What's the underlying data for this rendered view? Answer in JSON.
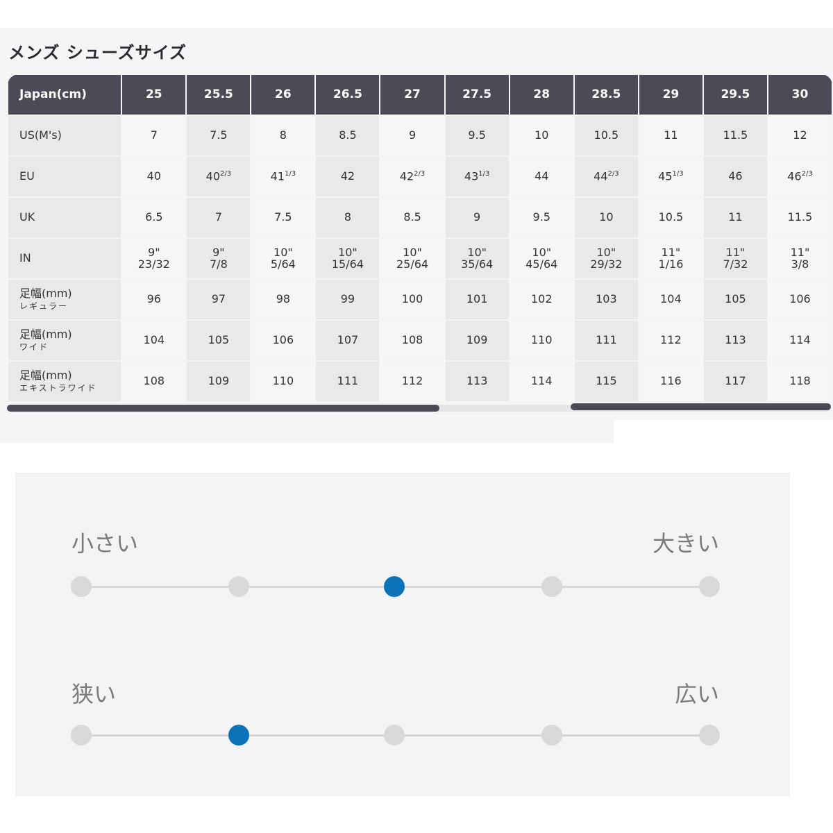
{
  "title": "メンズ シューズサイズ",
  "table": {
    "header": {
      "label": "Japan(cm)",
      "values": [
        "25",
        "25.5",
        "26",
        "26.5",
        "27",
        "27.5",
        "28",
        "28.5",
        "29",
        "29.5",
        "30"
      ]
    },
    "rows": [
      {
        "label": "US(M's)",
        "sub": "",
        "values": [
          "7",
          "7.5",
          "8",
          "8.5",
          "9",
          "9.5",
          "10",
          "10.5",
          "11",
          "11.5",
          "12"
        ]
      },
      {
        "label": "EU",
        "sub": "",
        "values": [
          "40",
          "40 2/3",
          "41 1/3",
          "42",
          "42 2/3",
          "43 1/3",
          "44",
          "44 2/3",
          "45 1/3",
          "46",
          "46 2/3"
        ]
      },
      {
        "label": "UK",
        "sub": "",
        "values": [
          "6.5",
          "7",
          "7.5",
          "8",
          "8.5",
          "9",
          "9.5",
          "10",
          "10.5",
          "11",
          "11.5"
        ]
      },
      {
        "label": "IN",
        "sub": "",
        "values": [
          "9\" 23/32",
          "9\" 7/8",
          "10\" 5/64",
          "10\" 15/64",
          "10\" 25/64",
          "10\" 35/64",
          "10\" 45/64",
          "10\" 29/32",
          "11\" 1/16",
          "11\" 7/32",
          "11\" 3/8"
        ]
      },
      {
        "label": "足幅(mm)",
        "sub": "レギュラー",
        "values": [
          "96",
          "97",
          "98",
          "99",
          "100",
          "101",
          "102",
          "103",
          "104",
          "105",
          "106"
        ]
      },
      {
        "label": "足幅(mm)",
        "sub": "ワイド",
        "values": [
          "104",
          "105",
          "106",
          "107",
          "108",
          "109",
          "110",
          "111",
          "112",
          "113",
          "114"
        ]
      },
      {
        "label": "足幅(mm)",
        "sub": "エキストラワイド",
        "values": [
          "108",
          "109",
          "110",
          "111",
          "112",
          "113",
          "114",
          "115",
          "116",
          "117",
          "118"
        ]
      }
    ]
  },
  "fit": {
    "length": {
      "left_label": "小さい",
      "right_label": "大きい",
      "steps": 5,
      "selected_index": 2
    },
    "width": {
      "left_label": "狭い",
      "right_label": "広い",
      "steps": 5,
      "selected_index": 1
    }
  },
  "colors": {
    "header": "#4a4b55",
    "selected": "#0a73b8",
    "dot": "#d9d9d9"
  }
}
